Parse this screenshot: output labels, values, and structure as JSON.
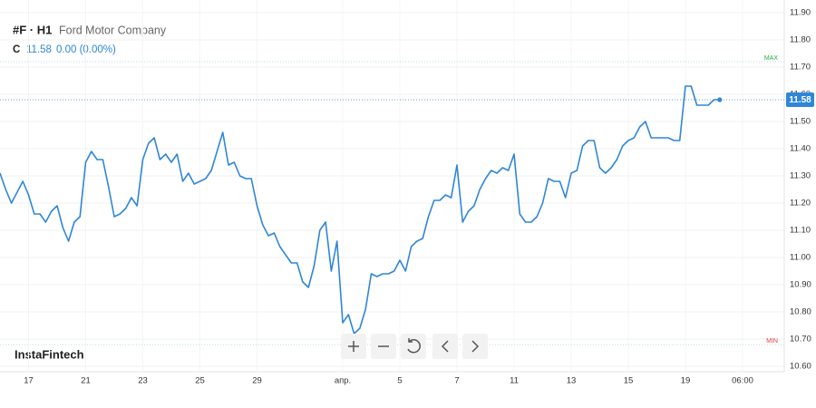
{
  "chart_data": {
    "type": "line",
    "symbol": "#F · H1",
    "title": "Ford Motor Company",
    "price_prefix": "C",
    "change": "0.00 (0.00%)",
    "brand": "InstaFintech",
    "max_line": {
      "label": "MAX",
      "value": 11.72
    },
    "min_line": {
      "label": "MIN",
      "value": 10.68
    },
    "color": "#2f86d8",
    "categories": [
      null,
      null,
      null,
      null,
      null,
      "17",
      null,
      null,
      null,
      null,
      null,
      null,
      null,
      null,
      null,
      "21",
      null,
      null,
      null,
      null,
      null,
      null,
      null,
      null,
      null,
      "23",
      null,
      null,
      null,
      null,
      null,
      null,
      null,
      null,
      null,
      "25",
      null,
      null,
      null,
      null,
      null,
      null,
      null,
      null,
      null,
      "29",
      null,
      null,
      null,
      null,
      null,
      null,
      null,
      null,
      null,
      null,
      null,
      null,
      null,
      null,
      "апр.",
      null,
      null,
      null,
      null,
      null,
      null,
      null,
      null,
      null,
      "5",
      null,
      null,
      null,
      null,
      null,
      null,
      null,
      null,
      null,
      "7",
      null,
      null,
      null,
      null,
      null,
      null,
      null,
      null,
      null,
      "11",
      null,
      null,
      null,
      null,
      null,
      null,
      null,
      null,
      null,
      "13",
      null,
      null,
      null,
      null,
      null,
      null,
      null,
      null,
      null,
      "15",
      null,
      null,
      null,
      null,
      null,
      null,
      null,
      null,
      null,
      "19",
      null,
      null,
      null,
      null,
      null,
      null,
      null,
      null,
      null,
      "06:00"
    ],
    "values": [
      11.31,
      11.25,
      11.2,
      11.24,
      11.28,
      11.23,
      11.16,
      11.16,
      11.13,
      11.17,
      11.19,
      11.11,
      11.06,
      11.13,
      11.15,
      11.35,
      11.39,
      11.36,
      11.36,
      11.26,
      11.15,
      11.16,
      11.18,
      11.22,
      11.19,
      11.36,
      11.42,
      11.44,
      11.36,
      11.38,
      11.35,
      11.38,
      11.28,
      11.31,
      11.27,
      11.28,
      11.29,
      11.32,
      11.39,
      11.46,
      11.34,
      11.35,
      11.3,
      11.29,
      11.29,
      11.19,
      11.12,
      11.08,
      11.09,
      11.04,
      11.01,
      10.98,
      10.98,
      10.91,
      10.89,
      10.97,
      11.1,
      11.13,
      10.95,
      11.06,
      10.76,
      10.79,
      10.72,
      10.74,
      10.81,
      10.94,
      10.93,
      10.94,
      10.94,
      10.95,
      10.99,
      10.95,
      11.04,
      11.06,
      11.07,
      11.15,
      11.21,
      11.21,
      11.23,
      11.22,
      11.34,
      11.13,
      11.17,
      11.19,
      11.25,
      11.29,
      11.32,
      11.31,
      11.33,
      11.32,
      11.38,
      11.16,
      11.13,
      11.13,
      11.15,
      11.2,
      11.29,
      11.28,
      11.28,
      11.22,
      11.31,
      11.32,
      11.41,
      11.43,
      11.43,
      11.33,
      11.31,
      11.33,
      11.36,
      11.41,
      11.43,
      11.44,
      11.48,
      11.5,
      11.44,
      11.44,
      11.44,
      11.44,
      11.43,
      11.43,
      11.63,
      11.63,
      11.56,
      11.56,
      11.56,
      11.58,
      11.58,
      null,
      null,
      null,
      null
    ],
    "ylim": [
      10.58,
      11.93
    ],
    "yticks": [
      {
        "value": 11.9,
        "label": "11.90"
      },
      {
        "value": 11.8,
        "label": "11.80"
      },
      {
        "value": 11.7,
        "label": "11.70"
      },
      {
        "value": 11.6,
        "label": "11.60"
      },
      {
        "value": 11.5,
        "label": "11.50"
      },
      {
        "value": 11.4,
        "label": "11.40"
      },
      {
        "value": 11.3,
        "label": "11.30"
      },
      {
        "value": 11.2,
        "label": "11.20"
      },
      {
        "value": 11.1,
        "label": "11.10"
      },
      {
        "value": 11.0,
        "label": "11.00"
      },
      {
        "value": 10.9,
        "label": "10.90"
      },
      {
        "value": 10.8,
        "label": "10.80"
      },
      {
        "value": 10.7,
        "label": "10.70"
      },
      {
        "value": 10.6,
        "label": "10.60"
      }
    ],
    "grid": true
  }
}
